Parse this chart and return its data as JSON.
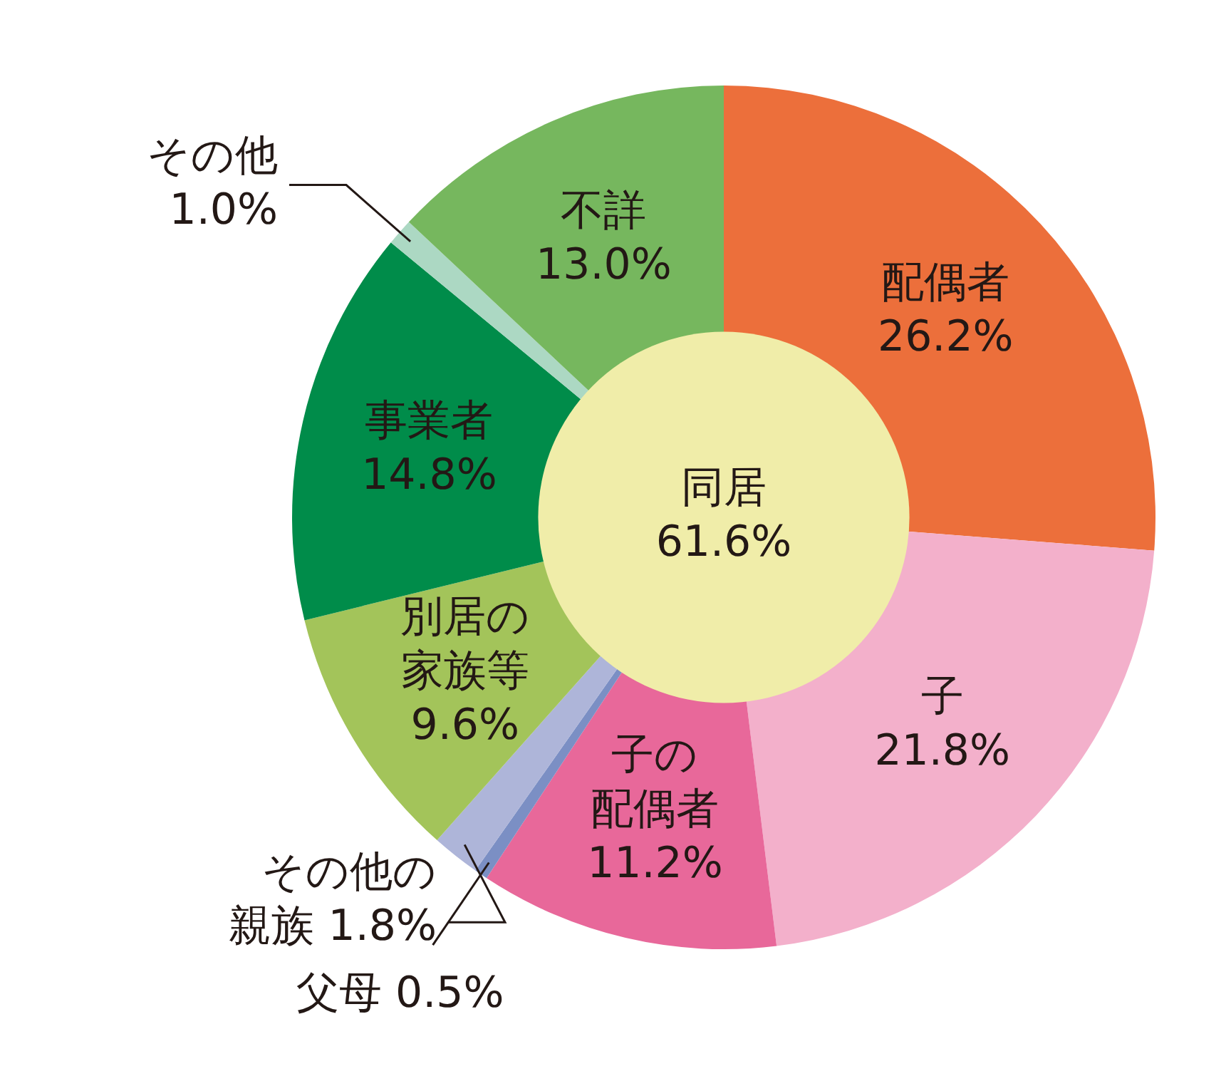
{
  "chart_data": {
    "type": "donut",
    "categories": [
      "配偶者",
      "子",
      "子の配偶者",
      "父母",
      "その他の親族",
      "別居の家族等",
      "事業者",
      "その他",
      "不詳"
    ],
    "values": [
      26.2,
      21.8,
      11.2,
      0.5,
      1.8,
      9.6,
      14.8,
      1.0,
      13.0
    ],
    "value_labels": [
      "26.2%",
      "21.8%",
      "11.2%",
      "0.5%",
      "1.8%",
      "9.6%",
      "14.8%",
      "1.0%",
      "13.0%"
    ],
    "colors": [
      "#ec6f3b",
      "#f3b0cb",
      "#e8689a",
      "#7b8fc4",
      "#aeb5d9",
      "#a3c45a",
      "#008c4a",
      "#acd8c3",
      "#76b75e"
    ],
    "annotations": [
      "同居 61.6%"
    ],
    "legend": false
  }
}
